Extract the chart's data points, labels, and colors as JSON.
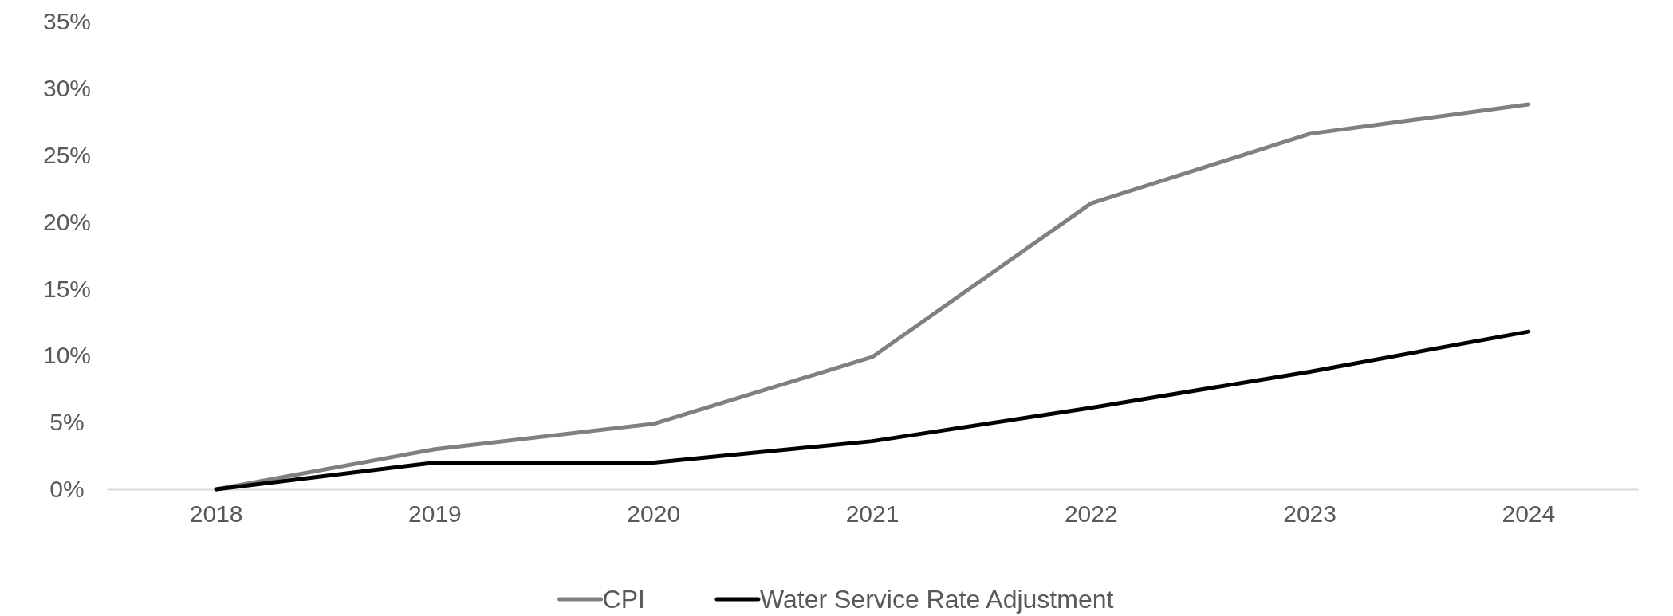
{
  "chart_data": {
    "type": "line",
    "categories": [
      "2018",
      "2019",
      "2020",
      "2021",
      "2022",
      "2023",
      "2024"
    ],
    "series": [
      {
        "name": "CPI",
        "color": "#808080",
        "values": [
          0,
          3.0,
          4.9,
          9.9,
          21.4,
          26.6,
          28.8
        ]
      },
      {
        "name": "Water Service Rate Adjustment",
        "color": "#000000",
        "values": [
          0,
          2.0,
          2.0,
          3.6,
          6.1,
          8.8,
          11.8
        ]
      }
    ],
    "ylim": [
      0,
      35
    ],
    "yticks": [
      {
        "value": 0,
        "label": "0%"
      },
      {
        "value": 5,
        "label": "5%"
      },
      {
        "value": 10,
        "label": "10%"
      },
      {
        "value": 15,
        "label": "15%"
      },
      {
        "value": 20,
        "label": "20%"
      },
      {
        "value": 25,
        "label": "25%"
      },
      {
        "value": 30,
        "label": "30%"
      },
      {
        "value": 35,
        "label": "35%"
      }
    ],
    "grid": false,
    "legend": "bottom",
    "marker": "none",
    "line_style": "solid"
  }
}
